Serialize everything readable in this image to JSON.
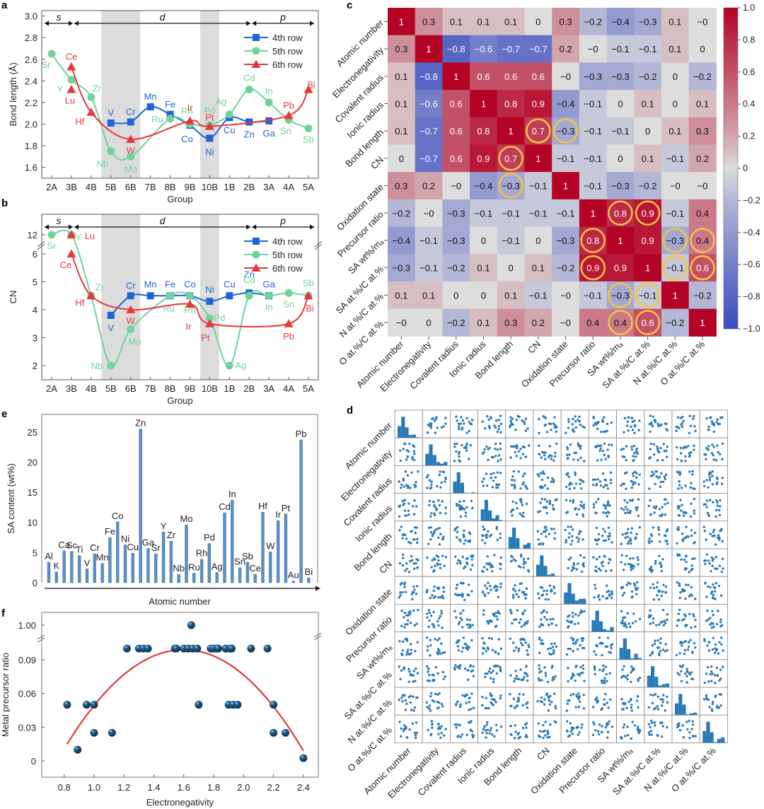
{
  "panel_labels": {
    "a": "a",
    "b": "b",
    "c": "c",
    "d": "d",
    "e": "e",
    "f": "f"
  },
  "colors": {
    "row4": "#1f64d6",
    "row5": "#6fd39a",
    "row6": "#e8373a",
    "shade": "#dcdcdc",
    "bar": "#5b8fc4",
    "scatter": "#2a7ab6",
    "fit": "#e13a3a",
    "dot": "#0e3f66",
    "circle": "#f5c542"
  },
  "chart_data": [
    {
      "id": "a",
      "type": "line",
      "title": "",
      "xlabel": "Group",
      "ylabel": "Bond length (Å)",
      "categories": [
        "2A",
        "3B",
        "4B",
        "5B",
        "6B",
        "7B",
        "8B",
        "9B",
        "10B",
        "1B",
        "2B",
        "3A",
        "4A",
        "5A"
      ],
      "ylim": [
        1.5,
        3.05
      ],
      "yticks": [
        "1.6",
        "1.8",
        "2.0",
        "2.2",
        "2.4",
        "2.6",
        "2.8",
        "3.0"
      ],
      "blocks": [
        {
          "label": "s",
          "from": 0,
          "to": 1
        },
        {
          "label": "d",
          "from": 1,
          "to": 10
        },
        {
          "label": "p",
          "from": 10,
          "to": 13
        }
      ],
      "shaded": [
        [
          3,
          4
        ],
        [
          8,
          8
        ]
      ],
      "legend": [
        "4th row",
        "5th row",
        "6th row"
      ],
      "legend_position": "top-right",
      "series": [
        {
          "name": "4th row",
          "points": [
            [
              3,
              2.01,
              "V"
            ],
            [
              4,
              2.02,
              "Cr"
            ],
            [
              5,
              2.16,
              "Mn"
            ],
            [
              6,
              2.09,
              "Fe"
            ],
            [
              7,
              1.99,
              "Co"
            ],
            [
              8,
              1.87,
              "Ni"
            ],
            [
              9,
              2.06,
              "Cu"
            ],
            [
              10,
              2.02,
              "Zn"
            ],
            [
              11,
              2.03,
              "Ga"
            ]
          ]
        },
        {
          "name": "5th row",
          "points": [
            [
              0,
              2.65,
              "Sr"
            ],
            [
              1,
              2.41,
              "Y"
            ],
            [
              2,
              2.25,
              "Zr"
            ],
            [
              3,
              1.75,
              "Nb"
            ],
            [
              4,
              1.7,
              "Mo"
            ],
            [
              6,
              2.05,
              "Ru"
            ],
            [
              7,
              2.0,
              "Rh"
            ],
            [
              8,
              1.99,
              "Pd"
            ],
            [
              9,
              2.09,
              "Ag"
            ],
            [
              10,
              2.32,
              "Cd"
            ],
            [
              11,
              2.2,
              "In"
            ],
            [
              12,
              2.04,
              "Sn"
            ],
            [
              13,
              1.96,
              "Sb"
            ]
          ]
        },
        {
          "name": "6th row",
          "points": [
            [
              1,
              2.53,
              "Ce"
            ],
            [
              1,
              2.32,
              "Lu"
            ],
            [
              2,
              2.11,
              "Hf"
            ],
            [
              4,
              1.86,
              "W"
            ],
            [
              7,
              2.03,
              "Ir"
            ],
            [
              8,
              1.98,
              "Pt"
            ],
            [
              12,
              2.08,
              "Pb"
            ],
            [
              13,
              2.32,
              "Bi"
            ]
          ]
        }
      ]
    },
    {
      "id": "b",
      "type": "line",
      "title": "",
      "xlabel": "Group",
      "ylabel": "CN",
      "categories": [
        "2A",
        "3B",
        "4B",
        "5B",
        "6B",
        "7B",
        "8B",
        "9B",
        "10B",
        "1B",
        "2B",
        "3A",
        "4A",
        "5A"
      ],
      "ylim": [
        1.5,
        12.5
      ],
      "yticks": [
        "2",
        "3",
        "4",
        "5",
        "6",
        "12"
      ],
      "axis_break": "between 6 and 12",
      "blocks": [
        {
          "label": "s",
          "from": 0,
          "to": 1
        },
        {
          "label": "d",
          "from": 1,
          "to": 10
        },
        {
          "label": "p",
          "from": 10,
          "to": 13
        }
      ],
      "shaded": [
        [
          3,
          4
        ],
        [
          8,
          8
        ]
      ],
      "legend": [
        "4th row",
        "5th row",
        "6th row"
      ],
      "legend_position": "top-right",
      "series": [
        {
          "name": "4th row",
          "points": [
            [
              3,
              3.8,
              "V"
            ],
            [
              4,
              4.5,
              "Cr"
            ],
            [
              5,
              4.5,
              "Mn"
            ],
            [
              6,
              4.5,
              "Fe"
            ],
            [
              7,
              4.5,
              "Co"
            ],
            [
              8,
              4.3,
              "Ni"
            ],
            [
              9,
              4.5,
              "Cu"
            ],
            [
              10,
              4.6,
              "Zn"
            ],
            [
              11,
              4.5,
              "Ga"
            ]
          ]
        },
        {
          "name": "5th row",
          "points": [
            [
              0,
              12,
              "Sr"
            ],
            [
              1,
              12,
              "Y"
            ],
            [
              2,
              4.5,
              "Zr"
            ],
            [
              3,
              2.0,
              "Nb"
            ],
            [
              4,
              3.3,
              "Mo"
            ],
            [
              6,
              4.5,
              "Ru"
            ],
            [
              7,
              4.5,
              "Rh"
            ],
            [
              8,
              3.7,
              "Pd"
            ],
            [
              9,
              2.0,
              "Ag"
            ],
            [
              10,
              4.5,
              "Cd"
            ],
            [
              11,
              4.5,
              "In"
            ],
            [
              12,
              4.6,
              "Sn"
            ],
            [
              13,
              4.5,
              "Sb"
            ]
          ]
        },
        {
          "name": "6th row",
          "points": [
            [
              1,
              12,
              "Lu"
            ],
            [
              1,
              6,
              "Ce"
            ],
            [
              2,
              4.5,
              "Hf"
            ],
            [
              4,
              4.0,
              "W"
            ],
            [
              7,
              4.2,
              "Ir"
            ],
            [
              8,
              3.5,
              "Pt"
            ],
            [
              12,
              3.5,
              "Pb"
            ],
            [
              13,
              4.5,
              "Bi"
            ]
          ]
        }
      ]
    },
    {
      "id": "c",
      "type": "heatmap",
      "title": "",
      "labels": [
        "Atomic number",
        "Electronegativity",
        "Covalent radius",
        "Ionic radius",
        "Bond length",
        "CN",
        "Oxidation state",
        "Precursor ratio",
        "SA wt%/mₐ",
        "SA at.%/C at.%",
        "N at.%/C at.%",
        "O at.%/C at.%"
      ],
      "matrix": [
        [
          "1",
          "0.3",
          "0.1",
          "0.1",
          "0.1",
          "0",
          "0.3",
          "−0.2",
          "−0.4",
          "−0.3",
          "0.1",
          "−0"
        ],
        [
          "0.3",
          "1",
          "−0.8",
          "−0.6",
          "−0.7",
          "−0.7",
          "0.2",
          "−0",
          "−0.1",
          "−0.1",
          "0.1",
          "0"
        ],
        [
          "0.1",
          "−0.8",
          "1",
          "0.6",
          "0.6",
          "0.6",
          "−0",
          "−0.3",
          "−0.3",
          "−0.2",
          "0",
          "−0.2"
        ],
        [
          "0.1",
          "−0.6",
          "0.6",
          "1",
          "0.8",
          "0.9",
          "−0.4",
          "−0.1",
          "0",
          "0.1",
          "0",
          "0.1"
        ],
        [
          "0.1",
          "−0.7",
          "0.6",
          "0.8",
          "1",
          "0.7",
          "−0.3",
          "−0.1",
          "−0.1",
          "0",
          "0.1",
          "0.3"
        ],
        [
          "0",
          "−0.7",
          "0.6",
          "0.9",
          "0.7",
          "1",
          "−0.1",
          "−0.1",
          "0",
          "0.1",
          "−0.1",
          "0.2"
        ],
        [
          "0.3",
          "0.2",
          "−0",
          "−0.4",
          "−0.3",
          "−0.1",
          "1",
          "−0.1",
          "−0.3",
          "−0.2",
          "−0",
          "−0"
        ],
        [
          "−0.2",
          "−0",
          "−0.3",
          "−0.1",
          "−0.1",
          "−0.1",
          "−0.1",
          "1",
          "0.8",
          "0.9",
          "−0.1",
          "0.4"
        ],
        [
          "−0.4",
          "−0.1",
          "−0.3",
          "0",
          "−0.1",
          "0",
          "−0.3",
          "0.8",
          "1",
          "0.9",
          "−0.3",
          "0.4"
        ],
        [
          "−0.3",
          "−0.1",
          "−0.2",
          "0.1",
          "0",
          "0.1",
          "−0.2",
          "0.9",
          "0.9",
          "1",
          "−0.1",
          "0.6"
        ],
        [
          "0.1",
          "0.1",
          "0",
          "0",
          "0.1",
          "−0.1",
          "−0",
          "−0.1",
          "−0.3",
          "−0.1",
          "1",
          "−0.2"
        ],
        [
          "−0",
          "0",
          "−0.2",
          "0.1",
          "0.3",
          "0.2",
          "−0",
          "0.4",
          "0.4",
          "0.6",
          "−0.2",
          "1"
        ]
      ],
      "highlighted": [
        [
          4,
          5
        ],
        [
          5,
          4
        ],
        [
          4,
          6
        ],
        [
          6,
          4
        ],
        [
          7,
          8
        ],
        [
          7,
          9
        ],
        [
          8,
          7
        ],
        [
          9,
          7
        ],
        [
          8,
          10
        ],
        [
          8,
          11
        ],
        [
          9,
          10
        ],
        [
          9,
          11
        ],
        [
          10,
          8
        ],
        [
          10,
          9
        ],
        [
          11,
          8
        ],
        [
          11,
          9
        ]
      ],
      "colorbar": {
        "range": [
          -1.0,
          1.0
        ],
        "ticks": [
          "1.0",
          "0.8",
          "0.6",
          "0.4",
          "0.2",
          "0",
          "−0.2",
          "−0.4",
          "−0.6",
          "−0.8",
          "−1.0"
        ],
        "position": "right"
      }
    },
    {
      "id": "d",
      "type": "scatter",
      "title": "",
      "description": "Pair plot (scatter matrix) of 12 variables; histograms on diagonal",
      "labels": [
        "Atomic number",
        "Electronegativity",
        "Covalent radius",
        "Ionic radius",
        "Bond length",
        "CN",
        "Oxidation state",
        "Precursor ratio",
        "SA wt%/mₐ",
        "SA at.%/C at.%",
        "N at.%/C at.%",
        "O at.%/C at.%"
      ]
    },
    {
      "id": "e",
      "type": "bar",
      "title": "",
      "xlabel": "Atomic number",
      "ylabel": "SA content (wt%)",
      "ylim": [
        0,
        27
      ],
      "yticks": [
        "0",
        "5",
        "10",
        "15",
        "20",
        "25"
      ],
      "categories": [
        "Al",
        "K",
        "Ca",
        "Sc",
        "Ti",
        "V",
        "Cr",
        "Mn",
        "Fe",
        "Co",
        "Ni",
        "Cu",
        "Zn",
        "Ga",
        "Sr",
        "Y",
        "Zr",
        "Nb",
        "Mo",
        "Ru",
        "Rh",
        "Pd",
        "Ag",
        "Cd",
        "In",
        "Sn",
        "Sb",
        "Ce",
        "Hf",
        "W",
        "Ir",
        "Pt",
        "Au",
        "Pb",
        "Bi"
      ],
      "values": [
        3.4,
        1.8,
        5.3,
        5.2,
        4.5,
        2.3,
        4.8,
        3.2,
        7.5,
        10.1,
        6.3,
        4.9,
        25.5,
        5.7,
        4.8,
        8.4,
        6.9,
        1.4,
        9.6,
        1.6,
        3.9,
        6.5,
        1.7,
        11.6,
        13.7,
        2.5,
        3.4,
        1.4,
        11.7,
        5.1,
        10.3,
        11.4,
        0.3,
        23.7,
        0.8
      ]
    },
    {
      "id": "f",
      "type": "scatter",
      "title": "",
      "xlabel": "Electronegativity",
      "ylabel": "Metal precursor ratio",
      "xlim": [
        0.65,
        2.5
      ],
      "xticks": [
        "0.8",
        "1.0",
        "1.2",
        "1.4",
        "1.6",
        "1.8",
        "2.0",
        "2.2",
        "2.4"
      ],
      "yticks": [
        "0",
        "0.03",
        "0.06",
        "0.09",
        "1.00"
      ],
      "axis_break": "between 0.09 and 1.00",
      "points": [
        [
          0.82,
          0.05
        ],
        [
          0.89,
          0.01
        ],
        [
          0.95,
          0.05
        ],
        [
          1.0,
          0.05
        ],
        [
          1.0,
          0.025
        ],
        [
          1.12,
          0.025
        ],
        [
          1.22,
          0.1
        ],
        [
          1.3,
          0.1
        ],
        [
          1.33,
          0.1
        ],
        [
          1.36,
          0.1
        ],
        [
          1.54,
          0.1
        ],
        [
          1.55,
          0.1
        ],
        [
          1.6,
          0.1
        ],
        [
          1.63,
          0.1
        ],
        [
          1.65,
          1.0
        ],
        [
          1.66,
          0.1
        ],
        [
          1.69,
          0.1
        ],
        [
          1.7,
          0.05
        ],
        [
          1.78,
          0.1
        ],
        [
          1.8,
          0.1
        ],
        [
          1.82,
          0.1
        ],
        [
          1.83,
          0.1
        ],
        [
          1.88,
          0.1
        ],
        [
          1.9,
          0.05
        ],
        [
          1.91,
          0.1
        ],
        [
          1.92,
          0.1
        ],
        [
          1.93,
          0.05
        ],
        [
          1.96,
          0.05
        ],
        [
          2.05,
          0.1
        ],
        [
          2.16,
          0.1
        ],
        [
          2.2,
          0.05
        ],
        [
          2.2,
          0.025
        ],
        [
          2.28,
          0.025
        ],
        [
          2.4,
          0.0025
        ]
      ],
      "fit": {
        "type": "quadratic",
        "x_range": [
          0.82,
          2.4
        ],
        "peak_x": 1.6,
        "peak_y": 0.099,
        "end_values": [
          0.015,
          0.009
        ]
      }
    }
  ]
}
